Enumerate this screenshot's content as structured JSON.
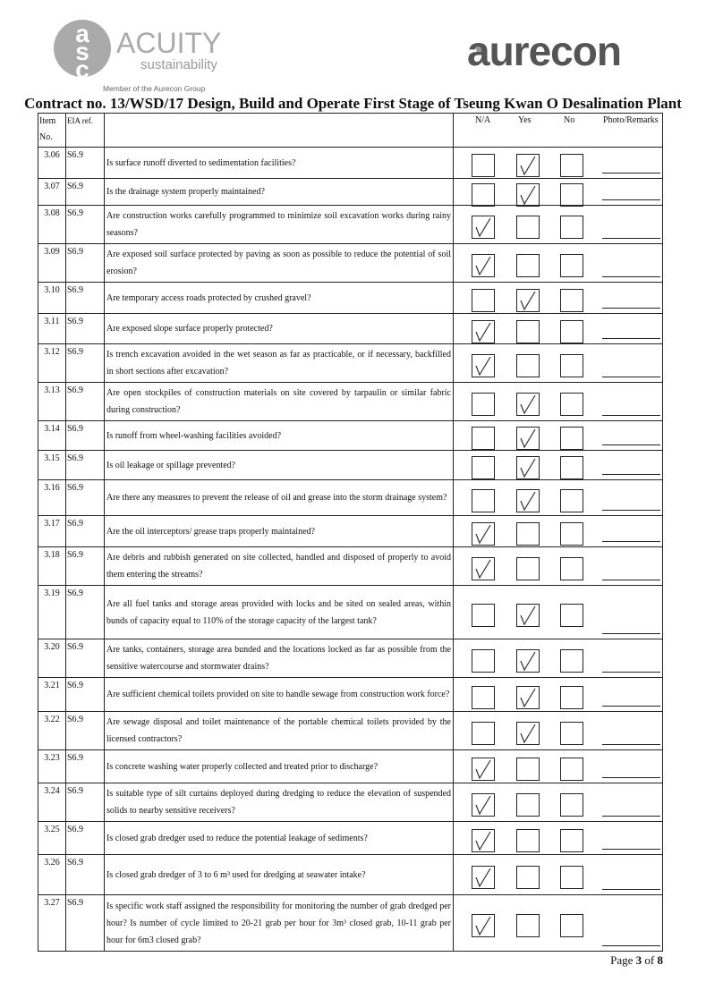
{
  "header": {
    "left_logo": {
      "mark": "acs",
      "name": "ACUITY",
      "sub": "sustainability",
      "tagline": "Member of the Aurecon Group"
    },
    "right_logo": "aurecon",
    "title": "Contract no.  13/WSD/17 Design, Build and Operate First Stage of Tseung Kwan O Desalination Plant"
  },
  "columns": {
    "item": "Item",
    "item2": "No.",
    "eia": "EIA ref.",
    "na": "N/A",
    "yes": "Yes",
    "no": "No",
    "remarks": "Photo/Remarks"
  },
  "rows": [
    {
      "item": "3.06",
      "eia": "S6.9",
      "q": "Is surface runoff diverted to sedimentation facilities?",
      "answer": "yes"
    },
    {
      "item": "3.07",
      "eia": "S6.9",
      "q": "Is the drainage system properly maintained?",
      "answer": "yes"
    },
    {
      "item": "3.08",
      "eia": "S6.9",
      "q": "Are construction works carefully programmed to minimize soil excavation works during rainy seasons?",
      "answer": "na"
    },
    {
      "item": "3.09",
      "eia": "S6.9",
      "q": "Are exposed soil surface protected by paving as soon as possible to reduce the potential of soil erosion?",
      "answer": "na"
    },
    {
      "item": "3.10",
      "eia": "S6.9",
      "q": "Are temporary access roads protected by crushed gravel?",
      "answer": "yes"
    },
    {
      "item": "3.11",
      "eia": "S6.9",
      "q": "Are exposed slope surface properly protected?",
      "answer": "na"
    },
    {
      "item": "3.12",
      "eia": "S6.9",
      "q": "Is trench excavation avoided in the wet season as far as practicable, or if necessary, backfilled in short sections after excavation?",
      "answer": "na"
    },
    {
      "item": "3.13",
      "eia": "S6.9",
      "q": "Are open stockpiles of construction materials on site covered by tarpaulin or similar fabric during construction?",
      "answer": "yes"
    },
    {
      "item": "3.14",
      "eia": "S6.9",
      "q": "Is runoff from wheel-washing facilities avoided?",
      "answer": "yes"
    },
    {
      "item": "3.15",
      "eia": "S6.9",
      "q": "Is oil leakage or spillage prevented?",
      "answer": "yes"
    },
    {
      "item": "3.16",
      "eia": "S6.9",
      "q": "Are there any measures to prevent the release of oil and grease into the storm drainage system?",
      "answer": "yes"
    },
    {
      "item": "3.17",
      "eia": "S6.9",
      "q": "Are the oil interceptors/ grease traps properly maintained?",
      "answer": "na"
    },
    {
      "item": "3.18",
      "eia": "S6.9",
      "q": "Are debris and rubbish generated on site collected, handled and disposed of properly to avoid them entering the streams?",
      "answer": "na"
    },
    {
      "item": "3.19",
      "eia": "S6.9",
      "q": "Are all fuel tanks and storage areas provided with locks and be sited on sealed areas, within bunds of capacity equal to 110% of the storage capacity of the largest tank?",
      "answer": "yes"
    },
    {
      "item": "3.20",
      "eia": "S6.9",
      "q": "Are tanks, containers, storage area bunded and the locations locked as far as possible from the sensitive watercourse and stormwater drains?",
      "answer": "yes"
    },
    {
      "item": "3.21",
      "eia": "S6.9",
      "q": "Are sufficient chemical toilets provided on site to handle sewage from construction work force?",
      "answer": "yes"
    },
    {
      "item": "3.22",
      "eia": "S6.9",
      "q": "Are sewage disposal and toilet maintenance of the portable chemical toilets provided by the licensed contractors?",
      "answer": "yes"
    },
    {
      "item": "3.23",
      "eia": "S6.9",
      "q": "Is concrete washing water properly collected and treated prior to discharge?",
      "answer": "na"
    },
    {
      "item": "3.24",
      "eia": "S6.9",
      "q": "Is suitable type of silt curtains deployed during dredging to reduce the elevation of suspended solids to nearby sensitive receivers?",
      "answer": "na"
    },
    {
      "item": "3.25",
      "eia": "S6.9",
      "q": "Is closed grab dredger used to reduce the potential leakage of sediments?",
      "answer": "na"
    },
    {
      "item": "3.26",
      "eia": "S6.9",
      "q": "Is closed grab dredger of 3 to 6 m³ used for dredging at seawater intake?",
      "answer": "na"
    },
    {
      "item": "3.27",
      "eia": "S6.9",
      "q": "Is specific work staff assigned the responsibility for monitoring the number of grab dredged per hour? Is number of cycle limited to 20-21 grab per hour for 3m³ closed grab, 10-11 grab per hour for 6m3 closed grab?",
      "answer": "na"
    }
  ],
  "footer": {
    "page": "Page 3 of 8"
  }
}
